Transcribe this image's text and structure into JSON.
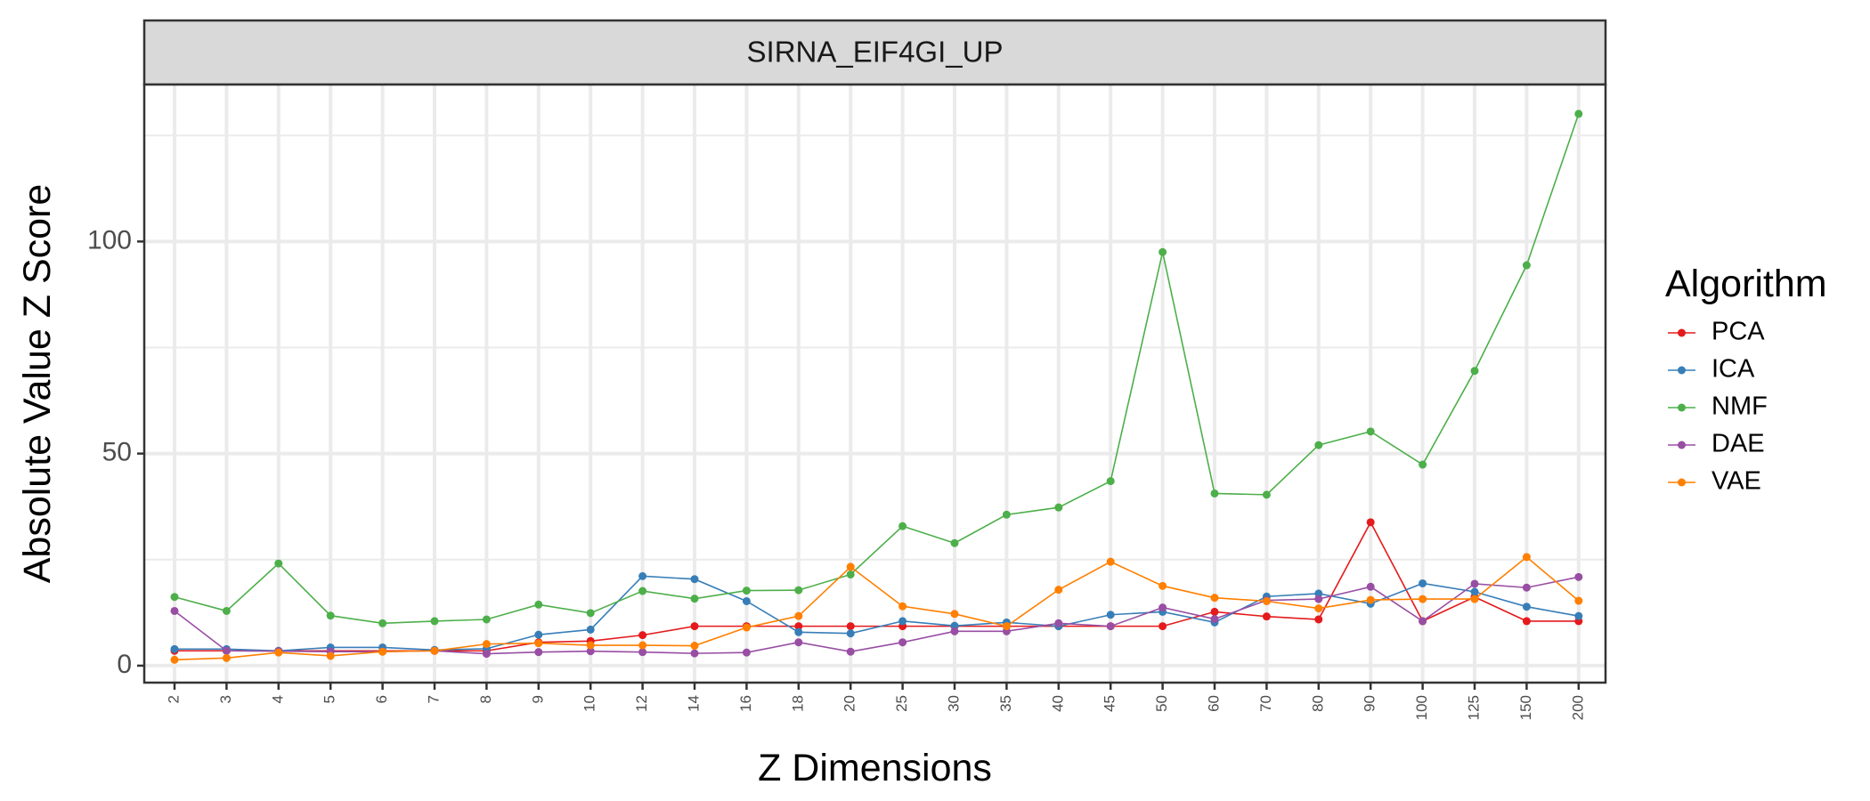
{
  "chart_data": {
    "type": "line",
    "facet_title": "SIRNA_EIF4GI_UP",
    "xlabel": "Z Dimensions",
    "ylabel": "Absolute Value Z Score",
    "categories": [
      "2",
      "3",
      "4",
      "5",
      "6",
      "7",
      "8",
      "9",
      "10",
      "12",
      "14",
      "16",
      "18",
      "20",
      "25",
      "30",
      "35",
      "40",
      "45",
      "50",
      "60",
      "70",
      "80",
      "90",
      "100",
      "125",
      "150",
      "200"
    ],
    "yticks": [
      0,
      50,
      100
    ],
    "ylim": [
      -4,
      137
    ],
    "grid": true,
    "legend_title": "Algorithm",
    "legend_position": "right",
    "series": [
      {
        "name": "PCA",
        "color": "#E41A1C",
        "values": [
          3.5,
          3.5,
          3.5,
          3.5,
          3.5,
          3.5,
          3.5,
          5.5,
          5.8,
          7.2,
          9.3,
          9.3,
          9.3,
          9.3,
          9.3,
          9.3,
          9.3,
          9.3,
          9.3,
          9.3,
          12.7,
          11.6,
          10.9,
          33.8,
          10.5,
          16.2,
          10.5,
          10.5
        ]
      },
      {
        "name": "ICA",
        "color": "#377EB8",
        "values": [
          3.9,
          3.9,
          3.5,
          4.3,
          4.3,
          3.7,
          4.0,
          7.3,
          8.5,
          21.1,
          20.4,
          15.2,
          7.9,
          7.6,
          10.5,
          9.4,
          10.2,
          9.3,
          12.0,
          12.7,
          10.2,
          16.3,
          17.0,
          14.6,
          19.4,
          17.4,
          13.9,
          11.7
        ]
      },
      {
        "name": "NMF",
        "color": "#4DAF4A",
        "values": [
          16.2,
          12.9,
          24.1,
          11.8,
          10.0,
          10.5,
          10.9,
          14.4,
          12.4,
          17.6,
          15.8,
          17.7,
          17.8,
          21.5,
          32.9,
          28.9,
          35.6,
          37.3,
          43.5,
          97.5,
          40.6,
          40.3,
          52.0,
          55.2,
          47.4,
          69.5,
          94.4,
          130.1
        ]
      },
      {
        "name": "DAE",
        "color": "#984EA3",
        "values": [
          12.9,
          3.5,
          3.4,
          3.3,
          3.3,
          3.5,
          2.8,
          3.2,
          3.4,
          3.2,
          2.9,
          3.1,
          5.5,
          3.3,
          5.5,
          8.1,
          8.1,
          10.0,
          9.3,
          13.7,
          11.0,
          15.4,
          15.7,
          18.6,
          10.5,
          19.3,
          18.4,
          20.9
        ]
      },
      {
        "name": "VAE",
        "color": "#FF7F00",
        "values": [
          1.4,
          1.8,
          3.1,
          2.3,
          3.3,
          3.5,
          5.1,
          5.3,
          4.8,
          4.8,
          4.7,
          9.0,
          11.7,
          23.3,
          14.0,
          12.2,
          9.3,
          17.9,
          24.5,
          18.8,
          16.0,
          15.2,
          13.5,
          15.5,
          15.7,
          15.7,
          25.6,
          15.3
        ]
      }
    ]
  }
}
